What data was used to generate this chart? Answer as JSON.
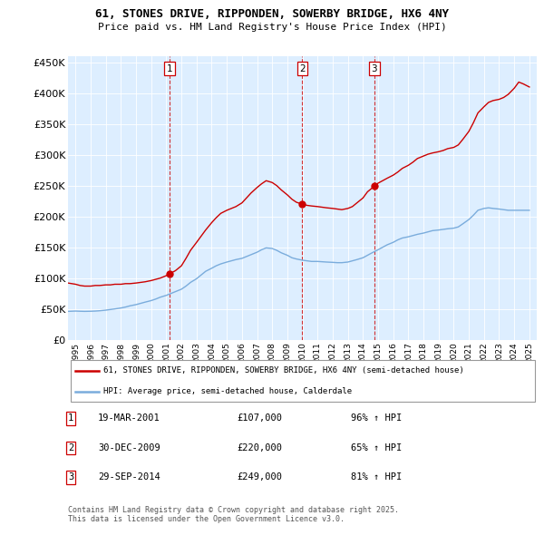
{
  "title": "61, STONES DRIVE, RIPPONDEN, SOWERBY BRIDGE, HX6 4NY",
  "subtitle": "Price paid vs. HM Land Registry's House Price Index (HPI)",
  "red_label": "61, STONES DRIVE, RIPPONDEN, SOWERBY BRIDGE, HX6 4NY (semi-detached house)",
  "blue_label": "HPI: Average price, semi-detached house, Calderdale",
  "footer": "Contains HM Land Registry data © Crown copyright and database right 2025.\nThis data is licensed under the Open Government Licence v3.0.",
  "transactions": [
    {
      "num": 1,
      "date": "19-MAR-2001",
      "price": "£107,000",
      "hpi": "96% ↑ HPI",
      "year": 2001.22,
      "price_val": 107000
    },
    {
      "num": 2,
      "date": "30-DEC-2009",
      "price": "£220,000",
      "hpi": "65% ↑ HPI",
      "year": 2009.99,
      "price_val": 220000
    },
    {
      "num": 3,
      "date": "29-SEP-2014",
      "price": "£249,000",
      "hpi": "81% ↑ HPI",
      "year": 2014.75,
      "price_val": 249000
    }
  ],
  "red_color": "#cc0000",
  "blue_color": "#7aacdc",
  "dashed_color": "#cc0000",
  "plot_bg": "#ddeeff",
  "ylim": [
    0,
    460000
  ],
  "yticks": [
    0,
    50000,
    100000,
    150000,
    200000,
    250000,
    300000,
    350000,
    400000,
    450000
  ],
  "xlim_start": 1994.5,
  "xlim_end": 2025.5,
  "red_x": [
    1994.5,
    1995.0,
    1995.3,
    1995.6,
    1996.0,
    1996.3,
    1996.6,
    1997.0,
    1997.3,
    1997.6,
    1998.0,
    1998.3,
    1998.6,
    1999.0,
    1999.3,
    1999.6,
    2000.0,
    2000.3,
    2000.6,
    2001.0,
    2001.22,
    2001.6,
    2002.0,
    2002.3,
    2002.6,
    2003.0,
    2003.3,
    2003.6,
    2004.0,
    2004.3,
    2004.6,
    2005.0,
    2005.3,
    2005.6,
    2006.0,
    2006.3,
    2006.6,
    2007.0,
    2007.3,
    2007.6,
    2008.0,
    2008.3,
    2008.6,
    2009.0,
    2009.3,
    2009.6,
    2009.99,
    2010.3,
    2010.6,
    2011.0,
    2011.3,
    2011.6,
    2012.0,
    2012.3,
    2012.6,
    2013.0,
    2013.3,
    2013.6,
    2014.0,
    2014.3,
    2014.75,
    2015.0,
    2015.3,
    2015.6,
    2016.0,
    2016.3,
    2016.6,
    2017.0,
    2017.3,
    2017.6,
    2018.0,
    2018.3,
    2018.6,
    2019.0,
    2019.3,
    2019.6,
    2020.0,
    2020.3,
    2020.6,
    2021.0,
    2021.3,
    2021.6,
    2022.0,
    2022.3,
    2022.6,
    2023.0,
    2023.3,
    2023.6,
    2024.0,
    2024.3,
    2024.6,
    2025.0
  ],
  "red_y": [
    92000,
    90000,
    88000,
    87000,
    87000,
    88000,
    88000,
    89000,
    89000,
    90000,
    90000,
    91000,
    91000,
    92000,
    93000,
    94000,
    96000,
    98000,
    100000,
    104000,
    107000,
    112000,
    120000,
    132000,
    145000,
    158000,
    168000,
    178000,
    190000,
    198000,
    205000,
    210000,
    213000,
    216000,
    222000,
    230000,
    238000,
    247000,
    253000,
    258000,
    255000,
    250000,
    243000,
    235000,
    228000,
    223000,
    220000,
    218000,
    217000,
    216000,
    215000,
    214000,
    213000,
    212000,
    211000,
    213000,
    216000,
    222000,
    230000,
    240000,
    249000,
    254000,
    258000,
    262000,
    267000,
    272000,
    278000,
    283000,
    288000,
    294000,
    298000,
    301000,
    303000,
    305000,
    307000,
    310000,
    312000,
    316000,
    325000,
    338000,
    352000,
    368000,
    378000,
    385000,
    388000,
    390000,
    393000,
    398000,
    408000,
    418000,
    415000,
    410000
  ],
  "blue_x": [
    1994.5,
    1995.0,
    1995.3,
    1995.6,
    1996.0,
    1996.3,
    1996.6,
    1997.0,
    1997.3,
    1997.6,
    1998.0,
    1998.3,
    1998.6,
    1999.0,
    1999.3,
    1999.6,
    2000.0,
    2000.3,
    2000.6,
    2001.0,
    2001.3,
    2001.6,
    2002.0,
    2002.3,
    2002.6,
    2003.0,
    2003.3,
    2003.6,
    2004.0,
    2004.3,
    2004.6,
    2005.0,
    2005.3,
    2005.6,
    2006.0,
    2006.3,
    2006.6,
    2007.0,
    2007.3,
    2007.6,
    2008.0,
    2008.3,
    2008.6,
    2009.0,
    2009.3,
    2009.6,
    2010.0,
    2010.3,
    2010.6,
    2011.0,
    2011.3,
    2011.6,
    2012.0,
    2012.3,
    2012.6,
    2013.0,
    2013.3,
    2013.6,
    2014.0,
    2014.3,
    2014.6,
    2015.0,
    2015.3,
    2015.6,
    2016.0,
    2016.3,
    2016.6,
    2017.0,
    2017.3,
    2017.6,
    2018.0,
    2018.3,
    2018.6,
    2019.0,
    2019.3,
    2019.6,
    2020.0,
    2020.3,
    2020.6,
    2021.0,
    2021.3,
    2021.6,
    2022.0,
    2022.3,
    2022.6,
    2023.0,
    2023.3,
    2023.6,
    2024.0,
    2024.3,
    2024.6,
    2025.0
  ],
  "blue_y": [
    46000,
    46500,
    46200,
    46000,
    46200,
    46500,
    47000,
    48000,
    49000,
    50000,
    51500,
    53000,
    55000,
    57000,
    59000,
    61000,
    63500,
    66000,
    69000,
    72000,
    75000,
    78000,
    82000,
    87000,
    93000,
    99000,
    105000,
    111000,
    116000,
    120000,
    123000,
    126000,
    128000,
    130000,
    132000,
    135000,
    138000,
    142000,
    146000,
    149000,
    148000,
    145000,
    141000,
    137000,
    133000,
    131000,
    129000,
    128000,
    127000,
    127000,
    126500,
    126000,
    125500,
    125000,
    125000,
    126000,
    128000,
    130000,
    133000,
    137000,
    141000,
    146000,
    150000,
    154000,
    158000,
    162000,
    165000,
    167000,
    169000,
    171000,
    173000,
    175000,
    177000,
    178000,
    179000,
    180000,
    181000,
    183000,
    188000,
    195000,
    202000,
    210000,
    213000,
    214000,
    213000,
    212000,
    211000,
    210000,
    210000,
    210000,
    210000,
    210000
  ]
}
